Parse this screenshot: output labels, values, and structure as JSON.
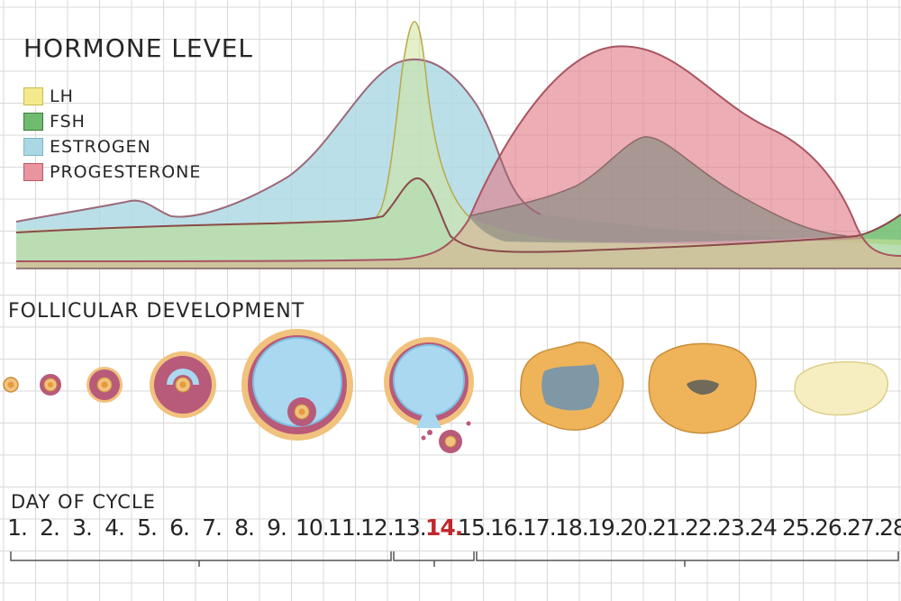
{
  "title": "HORMONE LEVEL",
  "legend": [
    {
      "label": "LH",
      "color": "#f3ea8e",
      "border": "#c9bd4a"
    },
    {
      "label": "FSH",
      "color": "#6fbc6e",
      "border": "#3f7a3d"
    },
    {
      "label": "ESTROGEN",
      "color": "#a9d7e3",
      "border": "#7fb6c5"
    },
    {
      "label": "PROGESTERONE",
      "color": "#e9949f",
      "border": "#b95a66"
    }
  ],
  "follicular_title": "FOLLICULAR DEVELOPMENT",
  "day_title": "DAY OF CYCLE",
  "days": [
    "1.",
    "2.",
    "3.",
    "4.",
    "5.",
    "6.",
    "7.",
    "8.",
    "9.",
    "10.",
    "11.",
    "12.",
    "13.",
    "14.",
    "15.",
    "16.",
    "17.",
    "18.",
    "19.",
    "20.",
    "21.",
    "22.",
    "23.",
    "24",
    "25.",
    "26.",
    "27.",
    "28."
  ],
  "highlight_day": "14.",
  "colors": {
    "grid": "#d9d9d9",
    "follicle_fluid": "#a9d8f0",
    "granulosa": "#b85a7a",
    "zona": "#f1c27d",
    "corpus_luteum": "#efb45a",
    "corpus_albicans": "#f6eec0",
    "bracket": "#555555"
  }
}
